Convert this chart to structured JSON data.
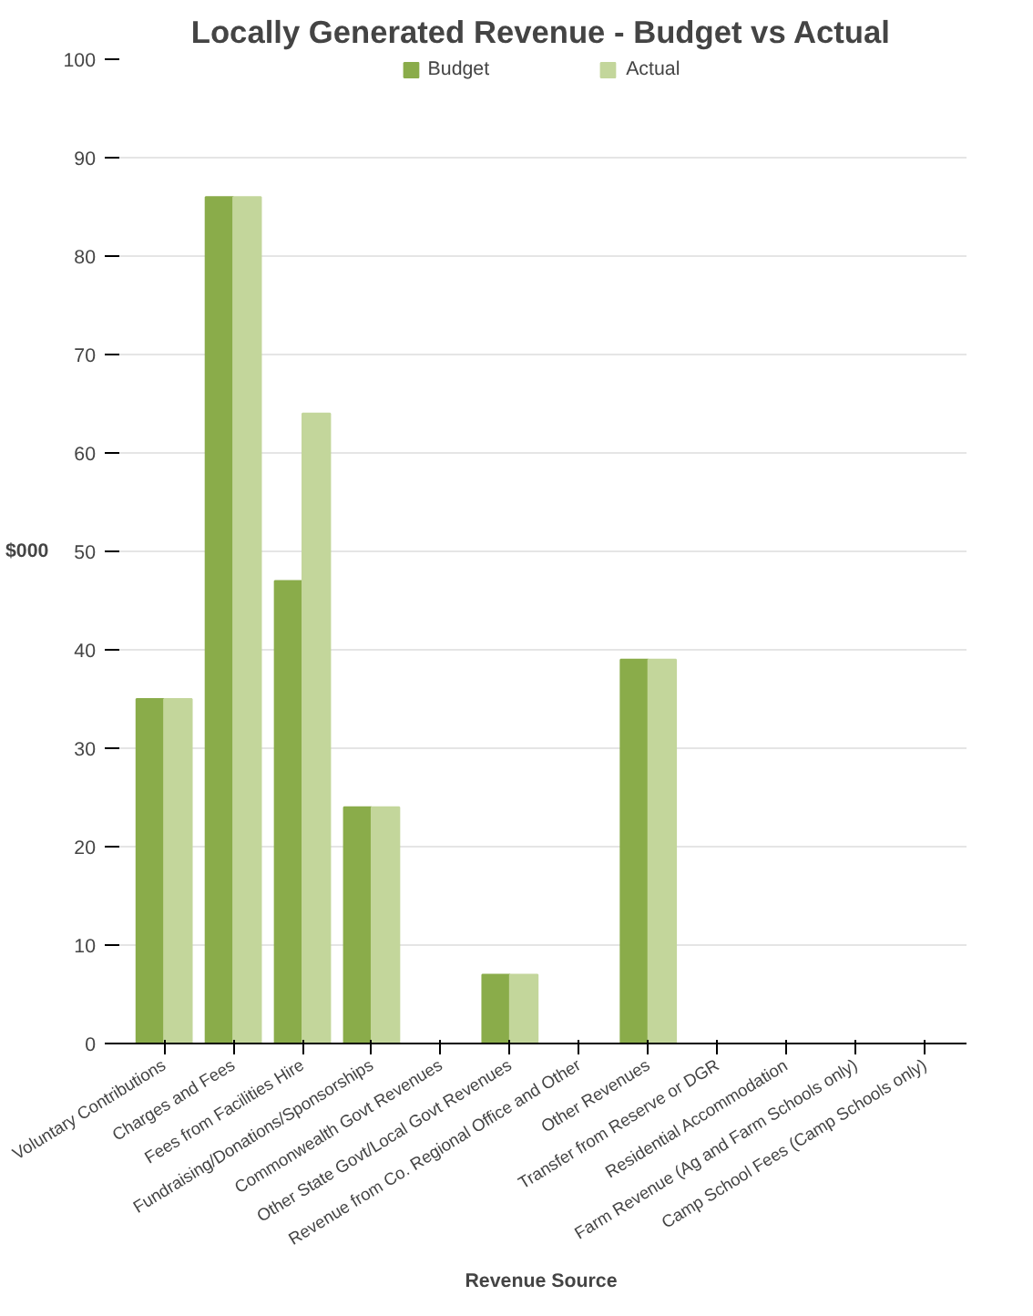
{
  "chart_data": {
    "type": "bar",
    "title": "Locally Generated Revenue - Budget vs Actual",
    "ylabel": "$000",
    "xlabel": "Revenue Source",
    "categories": [
      "Voluntary Contributions",
      "Charges and Fees",
      "Fees from Facilities Hire",
      "Fundraising/Donations/Sponsorships",
      "Commonwealth Govt Revenues",
      "Other State Govt/Local Govt Revenues",
      "Revenue from Co. Regional Office and Other",
      "Other Revenues",
      "Transfer from Reserve or DGR",
      "Residential Accommodation",
      "Farm Revenue (Ag and Farm Schools only)",
      "Camp School Fees (Camp Schools only)"
    ],
    "series": [
      {
        "name": "Budget",
        "color": "#8aac4a",
        "values": [
          35,
          86,
          47,
          24,
          0,
          7,
          0,
          39,
          0,
          0,
          0,
          0
        ]
      },
      {
        "name": "Actual",
        "color": "#c3d69b",
        "values": [
          35,
          86,
          64,
          24,
          0,
          7,
          0,
          39,
          0,
          0,
          0,
          0
        ]
      }
    ],
    "ylim": [
      0,
      100
    ],
    "yticks": [
      0,
      10,
      20,
      30,
      40,
      50,
      60,
      70,
      80,
      90,
      100
    ],
    "grid": "y",
    "legend": "top"
  }
}
